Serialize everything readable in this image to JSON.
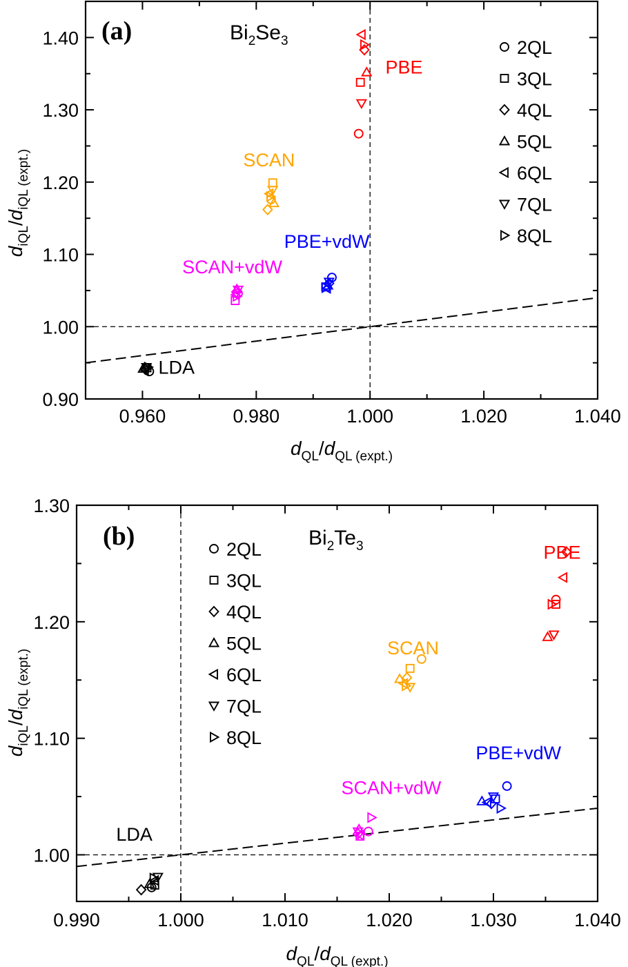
{
  "chart_data": [
    {
      "type": "scatter",
      "panel_label": "(a)",
      "material": {
        "base1": "Bi",
        "sub1": "2",
        "base2": "Se",
        "sub2": "3"
      },
      "xlabel": {
        "var": "d",
        "sub": "QL",
        "den_sub": "QL (expt.)"
      },
      "ylabel": {
        "var": "d",
        "sub": "iQL",
        "den_sub": "iQL (expt.)"
      },
      "xlim": [
        0.95,
        1.04
      ],
      "ylim": [
        0.9,
        1.45
      ],
      "xticks": [
        0.96,
        0.98,
        1.0,
        1.02,
        1.04
      ],
      "xtick_labels": [
        "0.960",
        "0.980",
        "1.000",
        "1.020",
        "1.040"
      ],
      "yticks": [
        0.9,
        1.0,
        1.1,
        1.2,
        1.3,
        1.4
      ],
      "ytick_labels": [
        "0.90",
        "1.00",
        "1.10",
        "1.20",
        "1.30",
        "1.40"
      ],
      "reference_lines": {
        "x": 1.0,
        "y": 1.0,
        "diagonal": true
      },
      "legend": [
        {
          "label": "2QL",
          "marker": "circle"
        },
        {
          "label": "3QL",
          "marker": "square"
        },
        {
          "label": "4QL",
          "marker": "diamond"
        },
        {
          "label": "5QL",
          "marker": "triangle-up"
        },
        {
          "label": "6QL",
          "marker": "triangle-left"
        },
        {
          "label": "7QL",
          "marker": "triangle-down"
        },
        {
          "label": "8QL",
          "marker": "triangle-right"
        }
      ],
      "series": [
        {
          "name": "PBE",
          "color": "#ff0000",
          "label_at": [
            1.0027,
            1.35
          ],
          "points": [
            [
              0.998,
              1.267
            ],
            [
              0.9983,
              1.338
            ],
            [
              0.999,
              1.383
            ],
            [
              0.9994,
              1.352
            ],
            [
              0.9985,
              1.404
            ],
            [
              0.9985,
              1.309
            ],
            [
              0.999,
              1.39
            ]
          ]
        },
        {
          "name": "SCAN",
          "color": "#ffa500",
          "label_at": [
            0.9777,
            1.222
          ],
          "points": [
            [
              0.9826,
              1.176
            ],
            [
              0.9829,
              1.199
            ],
            [
              0.982,
              1.162
            ],
            [
              0.9831,
              1.171
            ],
            [
              0.9823,
              1.184
            ],
            [
              0.9829,
              1.189
            ],
            [
              0.9825,
              1.18
            ]
          ]
        },
        {
          "name": "PBE+vdW",
          "color": "#0000ff",
          "label_at": [
            0.9849,
            1.109
          ],
          "points": [
            [
              0.9933,
              1.068
            ],
            [
              0.9922,
              1.055
            ],
            [
              0.9928,
              1.06
            ],
            [
              0.9926,
              1.057
            ],
            [
              0.9924,
              1.053
            ],
            [
              0.9928,
              1.062
            ],
            [
              0.9922,
              1.054
            ]
          ]
        },
        {
          "name": "SCAN+vdW",
          "color": "#ff00ff",
          "label_at": [
            0.967,
            1.074
          ],
          "points": [
            [
              0.9768,
              1.046
            ],
            [
              0.9763,
              1.036
            ],
            [
              0.9765,
              1.048
            ],
            [
              0.9766,
              1.052
            ],
            [
              0.9764,
              1.044
            ],
            [
              0.9768,
              1.051
            ],
            [
              0.9766,
              1.042
            ]
          ]
        },
        {
          "name": "LDA",
          "color": "#000000",
          "label_at": [
            0.9628,
            0.935
          ],
          "points": [
            [
              0.9612,
              0.938
            ],
            [
              0.9608,
              0.943
            ],
            [
              0.9605,
              0.941
            ],
            [
              0.9601,
              0.942
            ],
            [
              0.9604,
              0.94
            ],
            [
              0.9607,
              0.944
            ],
            [
              0.961,
              0.944
            ]
          ]
        }
      ]
    },
    {
      "type": "scatter",
      "panel_label": "(b)",
      "material": {
        "base1": "Bi",
        "sub1": "2",
        "base2": "Te",
        "sub2": "3"
      },
      "xlabel": {
        "var": "d",
        "sub": "QL",
        "den_sub": "QL (expt.)"
      },
      "ylabel": {
        "var": "d",
        "sub": "iQL",
        "den_sub": "iQL (expt.)"
      },
      "xlim": [
        0.99,
        1.04
      ],
      "ylim": [
        0.96,
        1.3
      ],
      "xticks": [
        0.99,
        1.0,
        1.01,
        1.02,
        1.03,
        1.04
      ],
      "xtick_labels": [
        "0.990",
        "1.000",
        "1.010",
        "1.020",
        "1.030",
        "1.040"
      ],
      "yticks": [
        1.0,
        1.1,
        1.2,
        1.3
      ],
      "ytick_labels": [
        "1.00",
        "1.10",
        "1.20",
        "1.30"
      ],
      "reference_lines": {
        "x": 1.0,
        "y": 1.0,
        "diagonal": true
      },
      "legend": [
        {
          "label": "2QL",
          "marker": "circle"
        },
        {
          "label": "3QL",
          "marker": "square"
        },
        {
          "label": "4QL",
          "marker": "diamond"
        },
        {
          "label": "5QL",
          "marker": "triangle-up"
        },
        {
          "label": "6QL",
          "marker": "triangle-left"
        },
        {
          "label": "7QL",
          "marker": "triangle-down"
        },
        {
          "label": "8QL",
          "marker": "triangle-right"
        }
      ],
      "series": [
        {
          "name": "PBE",
          "color": "#ff0000",
          "label_at": [
            1.0348,
            1.254
          ],
          "points": [
            [
              1.036,
              1.219
            ],
            [
              1.036,
              1.215
            ],
            [
              1.037,
              1.26
            ],
            [
              1.0352,
              1.187
            ],
            [
              1.0367,
              1.238
            ],
            [
              1.0358,
              1.189
            ],
            [
              1.0356,
              1.215
            ]
          ]
        },
        {
          "name": "SCAN",
          "color": "#ffa500",
          "label_at": [
            1.0198,
            1.172
          ],
          "points": [
            [
              1.0231,
              1.168
            ],
            [
              1.022,
              1.16
            ],
            [
              1.0217,
              1.152
            ],
            [
              1.021,
              1.151
            ],
            [
              1.0214,
              1.147
            ],
            [
              1.022,
              1.144
            ],
            [
              1.0216,
              1.145
            ]
          ]
        },
        {
          "name": "PBE+vdW",
          "color": "#0000ff",
          "label_at": [
            1.0283,
            1.082
          ],
          "points": [
            [
              1.0313,
              1.059
            ],
            [
              1.0302,
              1.048
            ],
            [
              1.0298,
              1.044
            ],
            [
              1.0289,
              1.046
            ],
            [
              1.0294,
              1.045
            ],
            [
              1.03,
              1.05
            ],
            [
              1.0307,
              1.04
            ]
          ]
        },
        {
          "name": "SCAN+vdW",
          "color": "#ff00ff",
          "label_at": [
            1.0154,
            1.052
          ],
          "points": [
            [
              1.018,
              1.02
            ],
            [
              1.0172,
              1.016
            ],
            [
              1.017,
              1.018
            ],
            [
              1.0171,
              1.022
            ],
            [
              1.0172,
              1.017
            ],
            [
              1.017,
              1.02
            ],
            [
              1.0183,
              1.032
            ]
          ]
        },
        {
          "name": "LDA",
          "color": "#000000",
          "label_at": [
            0.9938,
            1.012
          ],
          "points": [
            [
              0.9972,
              0.972
            ],
            [
              0.9975,
              0.974
            ],
            [
              0.9962,
              0.97
            ],
            [
              0.997,
              0.975
            ],
            [
              0.9975,
              0.978
            ],
            [
              0.9978,
              0.981
            ],
            [
              0.9974,
              0.98
            ]
          ]
        }
      ]
    }
  ]
}
